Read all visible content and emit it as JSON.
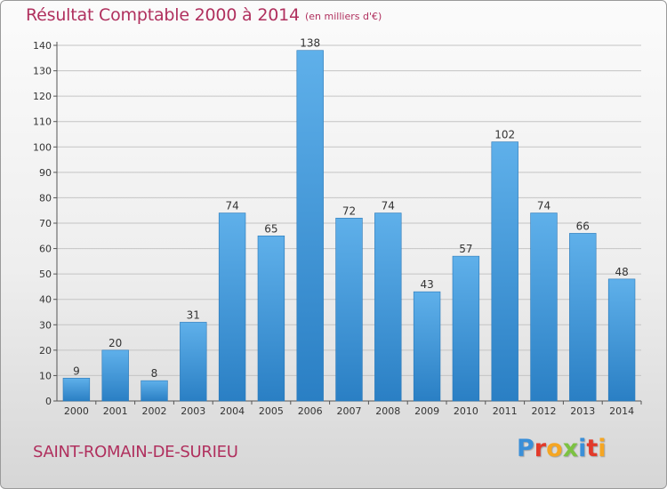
{
  "header": {
    "title": "Résultat Comptable 2000 à 2014",
    "subtitle": "(en milliers d'€)"
  },
  "footer": {
    "commune": "SAINT-ROMAIN-DE-SURIEU",
    "logo": "Proxiti"
  },
  "colors": {
    "title": "#b0305e",
    "bar_top": "#5fb0ea",
    "bar_bottom": "#2a7fc4",
    "logo_letters": [
      "#3a8fd8",
      "#e23a2a",
      "#f5a623",
      "#7cc242",
      "#3a8fd8",
      "#e23a2a",
      "#f5a623"
    ]
  },
  "chart_data": {
    "type": "bar",
    "title": "Résultat Comptable 2000 à 2014",
    "categories": [
      "2000",
      "2001",
      "2002",
      "2003",
      "2004",
      "2005",
      "2006",
      "2007",
      "2008",
      "2009",
      "2010",
      "2011",
      "2012",
      "2013",
      "2014"
    ],
    "values": [
      9,
      20,
      8,
      31,
      74,
      65,
      138,
      72,
      74,
      43,
      57,
      102,
      74,
      66,
      48
    ],
    "ylim": [
      0,
      140
    ],
    "yticks": [
      0,
      10,
      20,
      30,
      40,
      50,
      60,
      70,
      80,
      90,
      100,
      110,
      120,
      130,
      140
    ],
    "grid": true,
    "data_labels": true
  }
}
